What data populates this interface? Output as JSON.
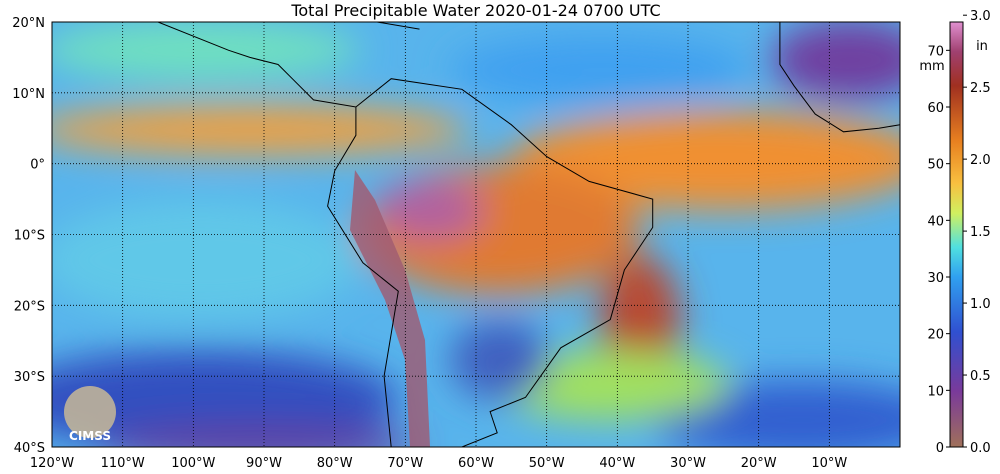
{
  "map": {
    "title": "Total Precipitable Water  2020-01-24 0700 UTC",
    "lon_range": [
      -120,
      0
    ],
    "lat_range": [
      -40,
      20
    ],
    "lon_ticks": [
      {
        "value": -120,
        "label": "120°W"
      },
      {
        "value": -110,
        "label": "110°W"
      },
      {
        "value": -100,
        "label": "100°W"
      },
      {
        "value": -90,
        "label": "90°W"
      },
      {
        "value": -80,
        "label": "80°W"
      },
      {
        "value": -70,
        "label": "70°W"
      },
      {
        "value": -60,
        "label": "60°W"
      },
      {
        "value": -50,
        "label": "50°W"
      },
      {
        "value": -40,
        "label": "40°W"
      },
      {
        "value": -30,
        "label": "30°W"
      },
      {
        "value": -20,
        "label": "20°W"
      },
      {
        "value": -10,
        "label": "10°W"
      }
    ],
    "lat_ticks": [
      {
        "value": 20,
        "label": "20°N"
      },
      {
        "value": 10,
        "label": "10°N"
      },
      {
        "value": 0,
        "label": "0°"
      },
      {
        "value": -10,
        "label": "10°S"
      },
      {
        "value": -20,
        "label": "20°S"
      },
      {
        "value": -30,
        "label": "30°S"
      },
      {
        "value": -40,
        "label": "40°S"
      }
    ],
    "colorbar": {
      "range_mm": [
        0,
        75
      ],
      "mm_label": "mm",
      "in_label": "in",
      "mm_ticks": [
        0,
        10,
        20,
        30,
        40,
        50,
        60,
        70
      ],
      "in_ticks": [
        {
          "value": 0,
          "label": "0.0"
        },
        {
          "value": 0.5,
          "label": "0.5"
        },
        {
          "value": 1,
          "label": "1.0"
        },
        {
          "value": 1.5,
          "label": "1.5"
        },
        {
          "value": 2,
          "label": "2.0"
        },
        {
          "value": 2.5,
          "label": "2.5"
        },
        {
          "value": 3,
          "label": "3.0"
        }
      ]
    },
    "logo": "CIMSS"
  }
}
